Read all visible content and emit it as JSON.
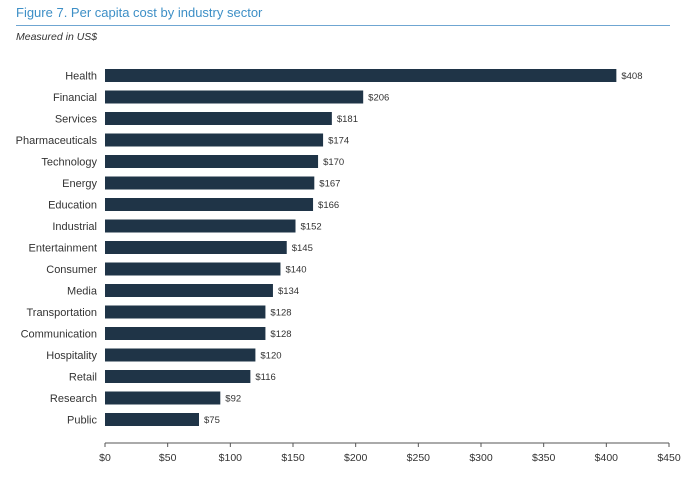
{
  "header": {
    "title": "Figure 7. Per capita cost by industry sector",
    "subtitle": "Measured in US$"
  },
  "colors": {
    "bar": "#1f3447",
    "title": "#3d8fc6",
    "text": "#333333",
    "axis": "#555555"
  },
  "chart_data": {
    "type": "bar",
    "orientation": "horizontal",
    "title": "Figure 7. Per capita cost by industry sector",
    "subtitle": "Measured in US$",
    "xlabel": "",
    "ylabel": "",
    "xlim": [
      0,
      450
    ],
    "xticks": [
      0,
      50,
      100,
      150,
      200,
      250,
      300,
      350,
      400,
      450
    ],
    "xtick_labels": [
      "$0",
      "$50",
      "$100",
      "$150",
      "$200",
      "$250",
      "$300",
      "$350",
      "$400",
      "$450"
    ],
    "categories": [
      "Health",
      "Financial",
      "Services",
      "Pharmaceuticals",
      "Technology",
      "Energy",
      "Education",
      "Industrial",
      "Entertainment",
      "Consumer",
      "Media",
      "Transportation",
      "Communication",
      "Hospitality",
      "Retail",
      "Research",
      "Public"
    ],
    "values": [
      408,
      206,
      181,
      174,
      170,
      167,
      166,
      152,
      145,
      140,
      134,
      128,
      128,
      120,
      116,
      92,
      75
    ],
    "value_labels": [
      "$408",
      "$206",
      "$181",
      "$174",
      "$170",
      "$167",
      "$166",
      "$152",
      "$145",
      "$140",
      "$134",
      "$128",
      "$128",
      "$120",
      "$116",
      "$92",
      "$75"
    ],
    "grid": false,
    "legend": "none"
  }
}
